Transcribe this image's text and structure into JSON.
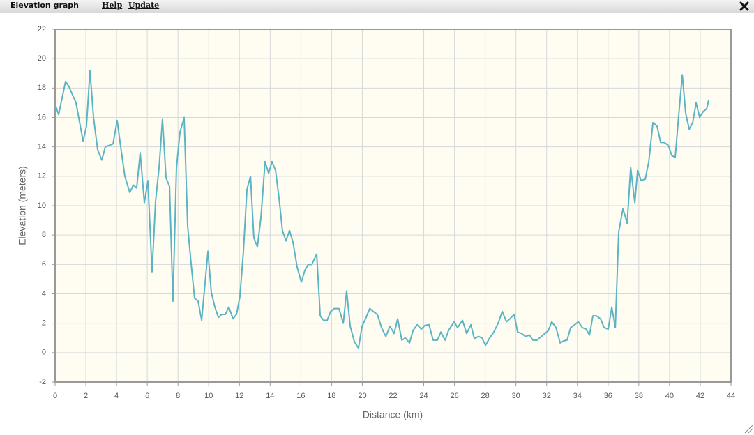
{
  "window": {
    "title": "Elevation graph",
    "menu": [
      "Help",
      "Update"
    ]
  },
  "chart_data": {
    "type": "line",
    "x_label": "Distance (km)",
    "y_label": "Elevation (meters)",
    "xlim": [
      0,
      44
    ],
    "ylim": [
      -2,
      22
    ],
    "xticks": [
      0,
      2,
      4,
      6,
      8,
      10,
      12,
      14,
      16,
      18,
      20,
      22,
      24,
      26,
      28,
      30,
      32,
      34,
      36,
      38,
      40,
      42,
      44
    ],
    "yticks": [
      -2,
      0,
      2,
      4,
      6,
      8,
      10,
      12,
      14,
      16,
      18,
      20,
      22
    ],
    "grid": true,
    "series": [
      {
        "name": "Elevation",
        "color": "#5bb4c4",
        "x": [
          0,
          0.23,
          0.68,
          0.9,
          1.36,
          1.82,
          2.04,
          2.27,
          2.5,
          2.77,
          3.04,
          3.27,
          3.77,
          4.04,
          4.27,
          4.54,
          4.86,
          5.09,
          5.31,
          5.54,
          5.81,
          6.04,
          6.31,
          6.54,
          6.77,
          6.99,
          7.22,
          7.45,
          7.67,
          7.9,
          8.13,
          8.4,
          8.63,
          8.86,
          9.08,
          9.31,
          9.54,
          9.95,
          10.17,
          10.4,
          10.63,
          10.85,
          11.08,
          11.31,
          11.58,
          11.81,
          12.03,
          12.26,
          12.49,
          12.72,
          12.94,
          13.17,
          13.4,
          13.67,
          13.9,
          14.12,
          14.35,
          14.58,
          14.8,
          15.03,
          15.26,
          15.49,
          15.76,
          16.03,
          16.26,
          16.48,
          16.71,
          17.03,
          17.26,
          17.48,
          17.71,
          17.94,
          18.17,
          18.48,
          18.76,
          18.98,
          19.21,
          19.48,
          19.75,
          19.98,
          20.21,
          20.48,
          20.71,
          20.98,
          21.25,
          21.53,
          21.8,
          22.07,
          22.3,
          22.57,
          22.8,
          23.07,
          23.3,
          23.57,
          23.84,
          24.07,
          24.34,
          24.61,
          24.89,
          25.11,
          25.39,
          25.61,
          25.98,
          26.2,
          26.52,
          26.79,
          27.07,
          27.29,
          27.56,
          27.79,
          28.02,
          28.29,
          28.56,
          28.84,
          29.11,
          29.38,
          29.61,
          29.88,
          30.11,
          30.38,
          30.61,
          30.88,
          31.11,
          31.38,
          31.65,
          31.88,
          32.11,
          32.33,
          32.61,
          32.88,
          33.11,
          33.33,
          33.56,
          33.83,
          34.06,
          34.33,
          34.56,
          34.79,
          35.01,
          35.24,
          35.51,
          35.74,
          36.01,
          36.24,
          36.47,
          36.69,
          36.97,
          37.24,
          37.47,
          37.74,
          37.92,
          38.15,
          38.42,
          38.65,
          38.92,
          39.19,
          39.42,
          39.65,
          39.92,
          40.15,
          40.37,
          40.6,
          40.83,
          41.05,
          41.28,
          41.51,
          41.73,
          41.96,
          42.19,
          42.42,
          42.55
        ],
        "values": [
          16.9,
          16.2,
          18.45,
          18.1,
          17.0,
          14.4,
          15.4,
          19.2,
          16.0,
          13.8,
          13.1,
          14.0,
          14.2,
          15.8,
          14.0,
          12.0,
          10.9,
          11.4,
          11.2,
          13.6,
          10.2,
          11.7,
          5.5,
          10.3,
          12.6,
          15.9,
          11.9,
          11.3,
          3.5,
          12.6,
          15.0,
          16.0,
          8.6,
          6.0,
          3.7,
          3.5,
          2.2,
          6.9,
          4.1,
          3.1,
          2.4,
          2.6,
          2.6,
          3.1,
          2.3,
          2.6,
          3.8,
          6.9,
          11.1,
          12.0,
          7.8,
          7.2,
          9.2,
          13.0,
          12.2,
          13.0,
          12.4,
          10.5,
          8.3,
          7.6,
          8.3,
          7.5,
          5.8,
          4.8,
          5.6,
          6.0,
          6.0,
          6.7,
          2.5,
          2.2,
          2.2,
          2.8,
          3.0,
          3.0,
          2.0,
          4.2,
          1.8,
          0.76,
          0.3,
          1.8,
          2.3,
          3.0,
          2.8,
          2.6,
          1.7,
          1.1,
          1.8,
          1.3,
          2.3,
          0.85,
          1.0,
          0.66,
          1.5,
          1.9,
          1.6,
          1.85,
          1.9,
          0.85,
          0.85,
          1.4,
          0.85,
          1.5,
          2.1,
          1.7,
          2.2,
          1.3,
          1.9,
          0.95,
          1.1,
          1.0,
          0.5,
          1.0,
          1.4,
          2.0,
          2.8,
          2.1,
          2.3,
          2.6,
          1.4,
          1.3,
          1.1,
          1.2,
          0.85,
          0.85,
          1.1,
          1.3,
          1.5,
          2.1,
          1.7,
          0.66,
          0.8,
          0.85,
          1.7,
          1.9,
          2.1,
          1.7,
          1.6,
          1.2,
          2.5,
          2.5,
          2.3,
          1.7,
          1.6,
          3.1,
          1.7,
          8.2,
          9.8,
          8.8,
          12.6,
          10.2,
          12.4,
          11.7,
          11.8,
          13.0,
          15.65,
          15.4,
          14.3,
          14.3,
          14.1,
          13.4,
          13.3,
          16.2,
          18.9,
          16.3,
          15.2,
          15.65,
          17.0,
          16.0,
          16.4,
          16.6,
          17.2
        ]
      }
    ]
  }
}
